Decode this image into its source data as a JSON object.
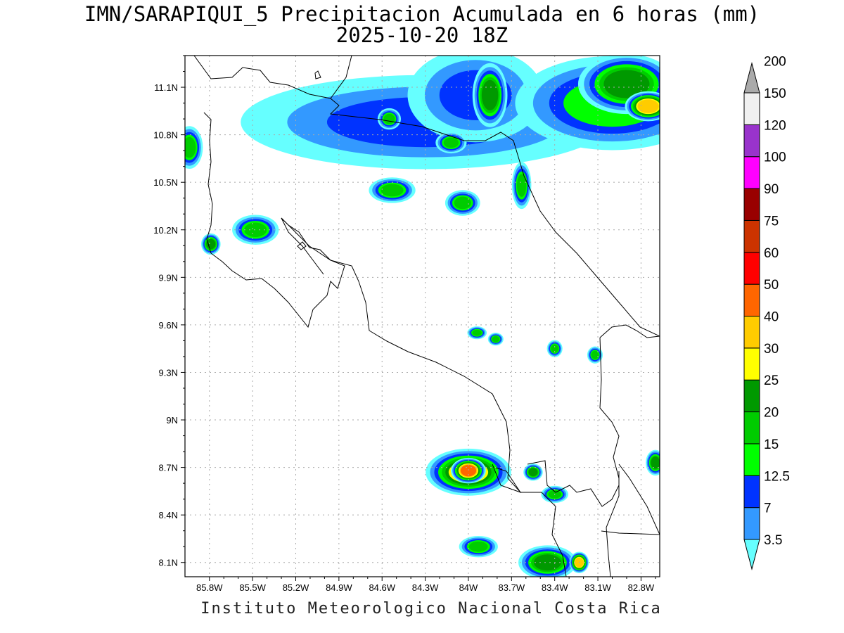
{
  "title": "IMN/SARAPIQUI_5 Precipitacion Acumulada en 6 horas (mm)",
  "subtitle": "2025-10-20 18Z",
  "footer": "Instituto Meteorologico Nacional Costa Rica",
  "lat_labels": [
    "11.1N",
    "10.8N",
    "10.5N",
    "10.2N",
    "9.9N",
    "9.6N",
    "9.3N",
    "9N",
    "8.7N",
    "8.4N",
    "8.1N"
  ],
  "lat_values": [
    11.1,
    10.8,
    10.5,
    10.2,
    9.9,
    9.6,
    9.3,
    9.0,
    8.7,
    8.4,
    8.1
  ],
  "lon_labels": [
    "85.8W",
    "85.5W",
    "85.2W",
    "84.9W",
    "84.6W",
    "84.3W",
    "84W",
    "83.7W",
    "83.4W",
    "83.1W",
    "82.8W"
  ],
  "lon_values": [
    -85.8,
    -85.5,
    -85.2,
    -84.9,
    -84.6,
    -84.3,
    -84.0,
    -83.7,
    -83.4,
    -83.1,
    -82.8
  ],
  "extent": {
    "lon_min": -85.97,
    "lon_max": -82.67,
    "lat_min": 8.01,
    "lat_max": 11.3
  },
  "colorbar": {
    "levels": [
      "3.5",
      "7",
      "12.5",
      "15",
      "20",
      "25",
      "30",
      "40",
      "50",
      "60",
      "75",
      "90",
      "100",
      "120",
      "150",
      "200"
    ],
    "colors": [
      "#66ffff",
      "#3399ff",
      "#0033ff",
      "#00ff00",
      "#00cc00",
      "#009900",
      "#ffff00",
      "#ffcc00",
      "#ff6600",
      "#ff0000",
      "#cc3300",
      "#990000",
      "#ff00ff",
      "#9933cc",
      "#f0f0f0",
      "#aaaaaa"
    ]
  },
  "rain_cells": [
    {
      "lon": -84.3,
      "lat": 10.88,
      "rx": 0.95,
      "ry": 0.22,
      "level": 2
    },
    {
      "lon": -83.95,
      "lat": 11.05,
      "rx": 0.35,
      "ry": 0.22,
      "level": 2
    },
    {
      "lon": -83.0,
      "lat": 11.0,
      "rx": 0.5,
      "ry": 0.22,
      "level": 3
    },
    {
      "lon": -82.9,
      "lat": 11.12,
      "rx": 0.25,
      "ry": 0.14,
      "level": 5
    },
    {
      "lon": -82.75,
      "lat": 10.98,
      "rx": 0.12,
      "ry": 0.07,
      "level": 7
    },
    {
      "lon": -83.85,
      "lat": 11.05,
      "rx": 0.09,
      "ry": 0.15,
      "level": 5
    },
    {
      "lon": -84.12,
      "lat": 10.75,
      "rx": 0.08,
      "ry": 0.05,
      "level": 4
    },
    {
      "lon": -83.63,
      "lat": 10.48,
      "rx": 0.05,
      "ry": 0.11,
      "level": 4
    },
    {
      "lon": -84.53,
      "lat": 10.45,
      "rx": 0.12,
      "ry": 0.06,
      "level": 4
    },
    {
      "lon": -84.04,
      "lat": 10.37,
      "rx": 0.09,
      "ry": 0.06,
      "level": 4
    },
    {
      "lon": -84.55,
      "lat": 10.9,
      "rx": 0.06,
      "ry": 0.05,
      "level": 4
    },
    {
      "lon": -85.94,
      "lat": 10.72,
      "rx": 0.07,
      "ry": 0.1,
      "level": 4
    },
    {
      "lon": -85.48,
      "lat": 10.2,
      "rx": 0.12,
      "ry": 0.07,
      "level": 4
    },
    {
      "lon": -85.79,
      "lat": 10.11,
      "rx": 0.05,
      "ry": 0.05,
      "level": 5
    },
    {
      "lon": -84.0,
      "lat": 8.67,
      "rx": 0.22,
      "ry": 0.11,
      "level": 6
    },
    {
      "lon": -84.0,
      "lat": 8.68,
      "rx": 0.09,
      "ry": 0.06,
      "level": 8
    },
    {
      "lon": -83.55,
      "lat": 8.67,
      "rx": 0.05,
      "ry": 0.04,
      "level": 5
    },
    {
      "lon": -83.4,
      "lat": 8.53,
      "rx": 0.07,
      "ry": 0.04,
      "level": 4
    },
    {
      "lon": -83.45,
      "lat": 8.1,
      "rx": 0.15,
      "ry": 0.08,
      "level": 5
    },
    {
      "lon": -83.23,
      "lat": 8.1,
      "rx": 0.05,
      "ry": 0.05,
      "level": 7
    },
    {
      "lon": -83.93,
      "lat": 8.2,
      "rx": 0.1,
      "ry": 0.05,
      "level": 4
    },
    {
      "lon": -82.7,
      "lat": 8.73,
      "rx": 0.05,
      "ry": 0.06,
      "level": 5
    },
    {
      "lon": -83.4,
      "lat": 9.45,
      "rx": 0.04,
      "ry": 0.04,
      "level": 4
    },
    {
      "lon": -83.12,
      "lat": 9.41,
      "rx": 0.04,
      "ry": 0.04,
      "level": 4
    },
    {
      "lon": -83.94,
      "lat": 9.55,
      "rx": 0.05,
      "ry": 0.03,
      "level": 4
    },
    {
      "lon": -83.81,
      "lat": 9.51,
      "rx": 0.04,
      "ry": 0.03,
      "level": 4
    }
  ]
}
